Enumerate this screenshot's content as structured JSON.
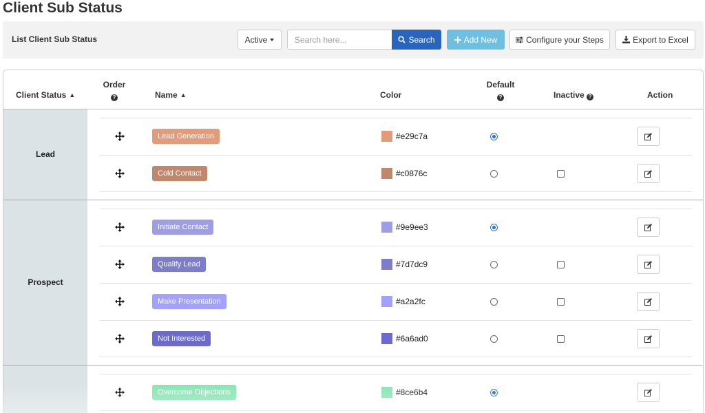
{
  "page": {
    "title": "Client Sub Status"
  },
  "toolbar": {
    "title": "List Client Sub Status",
    "filter_label": "Active",
    "search_placeholder": "Search here...",
    "search_label": "Search",
    "add_label": "Add New",
    "configure_label": "Configure your Steps",
    "export_label": "Export to Excel"
  },
  "table": {
    "headers": {
      "client_status": "Client Status",
      "order": "Order",
      "name": "Name",
      "color": "Color",
      "default": "Default",
      "inactive": "Inactive",
      "action": "Action"
    },
    "groups": [
      {
        "label": "Lead",
        "rows": [
          {
            "name": "Lead Generation",
            "color": "#e29c7a",
            "default": true,
            "inactive_checkbox": false
          },
          {
            "name": "Cold Contact",
            "color": "#c0876c",
            "default": false,
            "inactive_checkbox": true
          }
        ]
      },
      {
        "label": "Prospect",
        "rows": [
          {
            "name": "Initiate Contact",
            "color": "#9e9ee3",
            "default": true,
            "inactive_checkbox": false
          },
          {
            "name": "Qualify Lead",
            "color": "#7d7dc9",
            "default": false,
            "inactive_checkbox": true
          },
          {
            "name": "Make Presentation",
            "color": "#a2a2fc",
            "default": false,
            "inactive_checkbox": true
          },
          {
            "name": "Not Interested",
            "color": "#6a6ad0",
            "default": false,
            "inactive_checkbox": true
          }
        ]
      },
      {
        "label": "",
        "rows": [
          {
            "name": "Overcome Objections",
            "color": "#8ce6b4",
            "default": true,
            "inactive_checkbox": false
          }
        ]
      }
    ]
  },
  "icons": {
    "filter_caret": "caret-down-icon",
    "search": "search-icon",
    "add": "plus-icon",
    "configure": "sliders-icon",
    "export": "download-icon",
    "sort": "sort-icon",
    "help": "question-circle-icon",
    "move": "move-arrows-icon",
    "edit": "edit-icon"
  },
  "colors": {
    "search_button": "#2965bd",
    "add_button": "#6fc0e0",
    "radio_checked": "#2a6fd6",
    "group_cell": "#dce3e6"
  }
}
